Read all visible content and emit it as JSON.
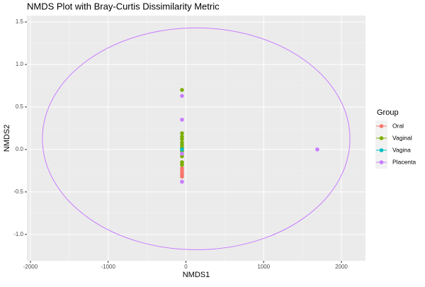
{
  "chart_data": {
    "type": "scatter",
    "title": "NMDS Plot with Bray-Curtis Dissimilarity Metric",
    "x_label": "NMDS1",
    "y_label": "NMDS2",
    "legend_title": "Group",
    "legend_position": "right",
    "grid": true,
    "xlim": [
      -2045,
      2310
    ],
    "ylim": [
      -1.31,
      1.575
    ],
    "xticks": [
      -2000,
      -1000,
      0,
      1000,
      2000
    ],
    "yticks": [
      1.5,
      {
        "value": 1,
        "label": "1.0"
      },
      0.5,
      {
        "value": 0,
        "label": "0.0"
      },
      -0.5,
      {
        "value": -1,
        "label": "-1.0"
      }
    ],
    "series": [
      {
        "name": "Oral",
        "color": "#F8766D",
        "x": [
          -50,
          -50,
          -50,
          -50,
          -50
        ],
        "y": [
          -0.22,
          -0.25,
          -0.28,
          -0.3,
          -0.32
        ]
      },
      {
        "name": "Vaginal",
        "color": "#7CAE00",
        "x": [
          -50,
          -50,
          -50,
          -50,
          -50,
          -50,
          -50,
          -50,
          -50,
          -50,
          -50
        ],
        "y": [
          0.7,
          0.19,
          0.15,
          0.12,
          0.08,
          0.05,
          0.02,
          -0.02,
          -0.08,
          -0.15,
          -0.18
        ]
      },
      {
        "name": "Vagina",
        "color": "#00BFC4",
        "x": [
          -50
        ],
        "y": [
          0.0
        ]
      },
      {
        "name": "Placenta",
        "color": "#C77CFF",
        "x": [
          -50,
          -50,
          -50,
          -50,
          1690
        ],
        "y": [
          0.63,
          0.35,
          -0.05,
          -0.38,
          0.0
        ]
      }
    ],
    "ellipse": {
      "series": 3,
      "cx": 132,
      "cy": 0.125,
      "rx": 1978,
      "ry": 1.305
    }
  }
}
